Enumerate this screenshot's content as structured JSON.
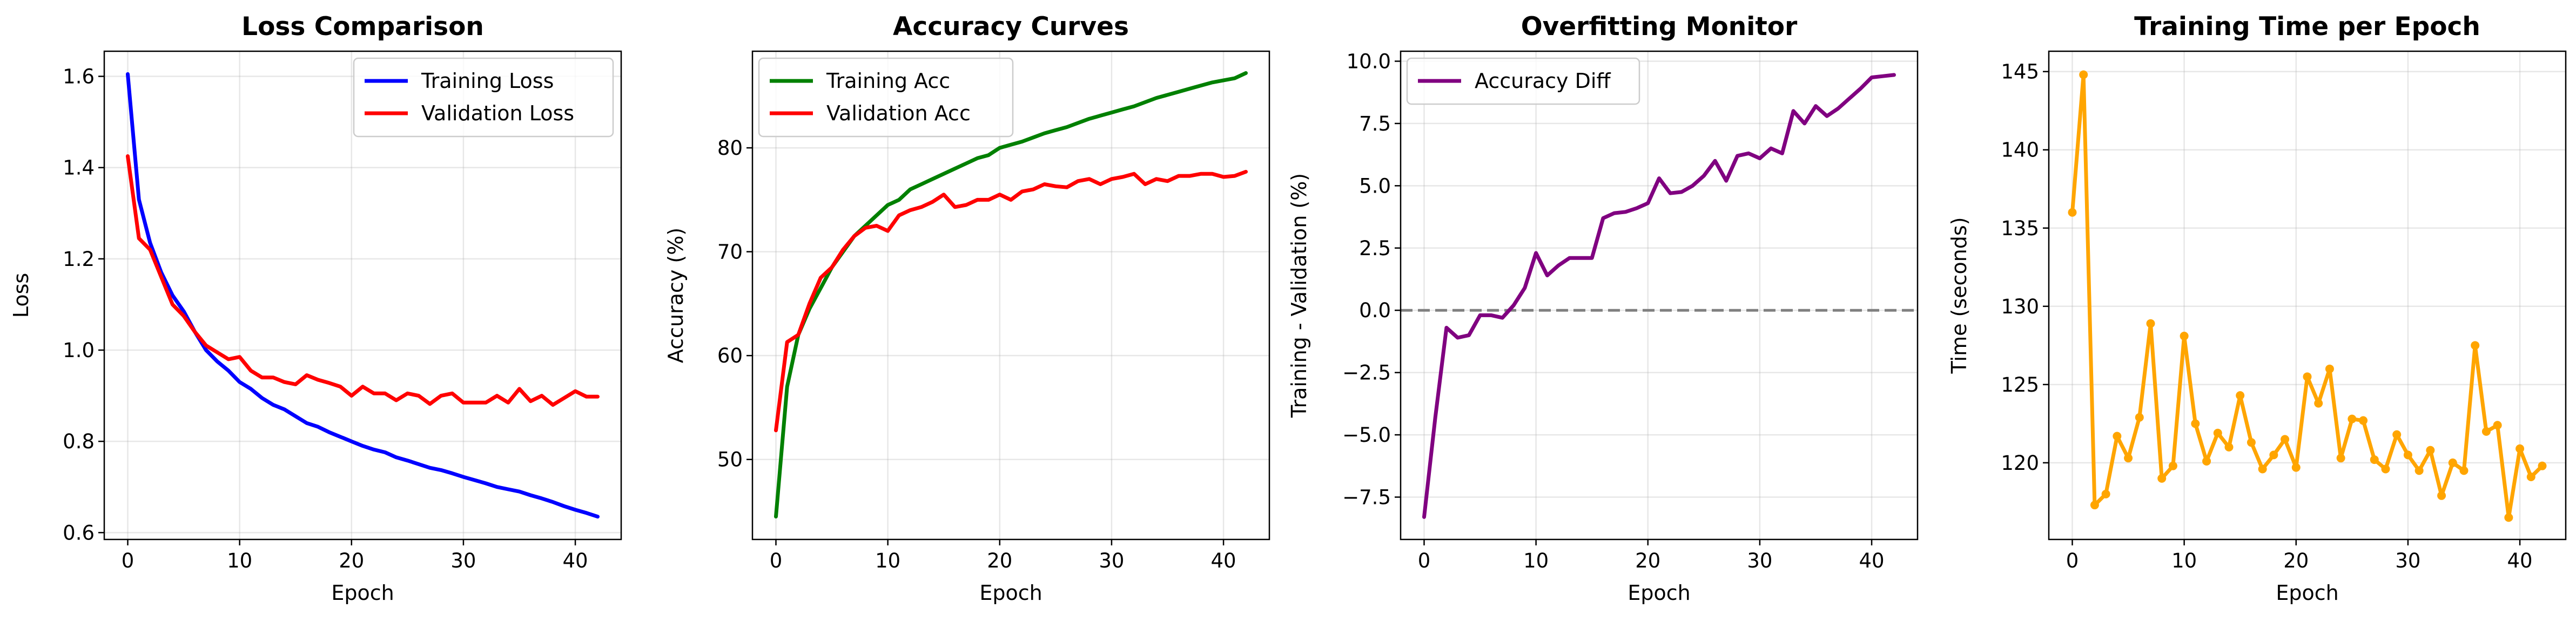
{
  "chart_data": [
    {
      "type": "line",
      "title": "Loss Comparison",
      "xlabel": "Epoch",
      "ylabel": "Loss",
      "xlim": [
        -2.1,
        44.1
      ],
      "ylim": [
        0.585,
        1.655
      ],
      "xticks": [
        0,
        10,
        20,
        30,
        40
      ],
      "yticks": [
        0.6,
        0.8,
        1.0,
        1.2,
        1.4,
        1.6
      ],
      "ytick_labels": [
        "0.6",
        "0.8",
        "1.0",
        "1.2",
        "1.4",
        "1.6"
      ],
      "grid": true,
      "legend_position": "upper right",
      "x": [
        0,
        1,
        2,
        3,
        4,
        5,
        6,
        7,
        8,
        9,
        10,
        11,
        12,
        13,
        14,
        15,
        16,
        17,
        18,
        19,
        20,
        21,
        22,
        23,
        24,
        25,
        26,
        27,
        28,
        29,
        30,
        31,
        32,
        33,
        34,
        35,
        36,
        37,
        38,
        39,
        40,
        41,
        42
      ],
      "series": [
        {
          "name": "Training Loss",
          "color": "#0000ff",
          "marker": false,
          "values": [
            1.605,
            1.33,
            1.235,
            1.17,
            1.12,
            1.085,
            1.04,
            1.0,
            0.975,
            0.955,
            0.93,
            0.915,
            0.895,
            0.88,
            0.87,
            0.855,
            0.84,
            0.832,
            0.82,
            0.81,
            0.8,
            0.79,
            0.782,
            0.776,
            0.765,
            0.758,
            0.75,
            0.742,
            0.737,
            0.73,
            0.722,
            0.715,
            0.708,
            0.7,
            0.695,
            0.69,
            0.682,
            0.675,
            0.667,
            0.658,
            0.65,
            0.643,
            0.635
          ]
        },
        {
          "name": "Validation Loss",
          "color": "#ff0000",
          "marker": false,
          "values": [
            1.425,
            1.245,
            1.22,
            1.16,
            1.1,
            1.075,
            1.04,
            1.01,
            0.995,
            0.98,
            0.985,
            0.955,
            0.94,
            0.94,
            0.93,
            0.925,
            0.945,
            0.935,
            0.928,
            0.92,
            0.9,
            0.92,
            0.905,
            0.905,
            0.89,
            0.905,
            0.9,
            0.882,
            0.9,
            0.905,
            0.885,
            0.885,
            0.885,
            0.9,
            0.885,
            0.915,
            0.888,
            0.9,
            0.88,
            0.895,
            0.91,
            0.898,
            0.898
          ]
        }
      ]
    },
    {
      "type": "line",
      "title": "Accuracy Curves",
      "xlabel": "Epoch",
      "ylabel": "Accuracy (%)",
      "xlim": [
        -2.1,
        44.1
      ],
      "ylim": [
        42.3,
        89.3
      ],
      "xticks": [
        0,
        10,
        20,
        30,
        40
      ],
      "yticks": [
        50,
        60,
        70,
        80
      ],
      "ytick_labels": [
        "50",
        "60",
        "70",
        "80"
      ],
      "grid": true,
      "legend_position": "upper left",
      "x": [
        0,
        1,
        2,
        3,
        4,
        5,
        6,
        7,
        8,
        9,
        10,
        11,
        12,
        13,
        14,
        15,
        16,
        17,
        18,
        19,
        20,
        21,
        22,
        23,
        24,
        25,
        26,
        27,
        28,
        29,
        30,
        31,
        32,
        33,
        34,
        35,
        36,
        37,
        38,
        39,
        40,
        41,
        42
      ],
      "series": [
        {
          "name": "Training Acc",
          "color": "#008000",
          "marker": false,
          "values": [
            44.5,
            57.0,
            62.0,
            64.5,
            66.5,
            68.5,
            70.0,
            71.5,
            72.5,
            73.5,
            74.5,
            75.0,
            76.0,
            76.5,
            77.0,
            77.5,
            78.0,
            78.5,
            79.0,
            79.3,
            80.0,
            80.3,
            80.6,
            81.0,
            81.4,
            81.7,
            82.0,
            82.4,
            82.8,
            83.1,
            83.4,
            83.7,
            84.0,
            84.4,
            84.8,
            85.1,
            85.4,
            85.7,
            86.0,
            86.3,
            86.5,
            86.7,
            87.2
          ]
        },
        {
          "name": "Validation Acc",
          "color": "#ff0000",
          "marker": false,
          "values": [
            52.8,
            61.3,
            62.0,
            65.0,
            67.5,
            68.5,
            70.2,
            71.5,
            72.3,
            72.5,
            72.0,
            73.5,
            74.0,
            74.3,
            74.8,
            75.5,
            74.3,
            74.5,
            75.0,
            75.0,
            75.5,
            75.0,
            75.8,
            76.0,
            76.5,
            76.3,
            76.2,
            76.8,
            77.0,
            76.5,
            77.0,
            77.2,
            77.5,
            76.5,
            77.0,
            76.8,
            77.3,
            77.3,
            77.5,
            77.5,
            77.2,
            77.3,
            77.7
          ]
        }
      ]
    },
    {
      "type": "line",
      "title": "Overfitting Monitor",
      "xlabel": "Epoch",
      "ylabel": "Training - Validation (%)",
      "xlim": [
        -2.1,
        44.1
      ],
      "ylim": [
        -9.2,
        10.4
      ],
      "xticks": [
        0,
        10,
        20,
        30,
        40
      ],
      "yticks": [
        -7.5,
        -5.0,
        -2.5,
        0.0,
        2.5,
        5.0,
        7.5,
        10.0
      ],
      "ytick_labels": [
        "−7.5",
        "−5.0",
        "−2.5",
        "0.0",
        "2.5",
        "5.0",
        "7.5",
        "10.0"
      ],
      "grid": true,
      "legend_position": "upper left",
      "reference_line": {
        "y": 0,
        "color": "#808080",
        "style": "dashed"
      },
      "x": [
        0,
        1,
        2,
        3,
        4,
        5,
        6,
        7,
        8,
        9,
        10,
        11,
        12,
        13,
        14,
        15,
        16,
        17,
        18,
        19,
        20,
        21,
        22,
        23,
        24,
        25,
        26,
        27,
        28,
        29,
        30,
        31,
        32,
        33,
        34,
        35,
        36,
        37,
        38,
        39,
        40,
        41,
        42
      ],
      "series": [
        {
          "name": "Accuracy Diff",
          "color": "#800080",
          "marker": false,
          "values": [
            -8.3,
            -4.3,
            -0.7,
            -1.1,
            -1.0,
            -0.2,
            -0.2,
            -0.3,
            0.2,
            0.9,
            2.3,
            1.4,
            1.8,
            2.1,
            2.1,
            2.1,
            3.7,
            3.9,
            3.95,
            4.1,
            4.3,
            5.3,
            4.7,
            4.75,
            5.0,
            5.4,
            6.0,
            5.2,
            6.2,
            6.3,
            6.1,
            6.5,
            6.3,
            8.0,
            7.5,
            8.2,
            7.8,
            8.1,
            8.5,
            8.9,
            9.35,
            9.4,
            9.45
          ]
        }
      ]
    },
    {
      "type": "line",
      "title": "Training Time per Epoch",
      "xlabel": "Epoch",
      "ylabel": "Time (seconds)",
      "xlim": [
        -2.1,
        44.1
      ],
      "ylim": [
        115.1,
        146.3
      ],
      "xticks": [
        0,
        10,
        20,
        30,
        40
      ],
      "yticks": [
        120,
        125,
        130,
        135,
        140,
        145
      ],
      "ytick_labels": [
        "120",
        "125",
        "130",
        "135",
        "140",
        "145"
      ],
      "grid": true,
      "legend_position": "",
      "x": [
        0,
        1,
        2,
        3,
        4,
        5,
        6,
        7,
        8,
        9,
        10,
        11,
        12,
        13,
        14,
        15,
        16,
        17,
        18,
        19,
        20,
        21,
        22,
        23,
        24,
        25,
        26,
        27,
        28,
        29,
        30,
        31,
        32,
        33,
        34,
        35,
        36,
        37,
        38,
        39,
        40,
        41,
        42
      ],
      "series": [
        {
          "color": "#ffa500",
          "marker": true,
          "values": [
            136.0,
            144.8,
            117.3,
            118.0,
            121.7,
            120.3,
            122.9,
            128.9,
            119.0,
            119.8,
            128.1,
            122.5,
            120.1,
            121.9,
            121.0,
            124.3,
            121.3,
            119.6,
            120.5,
            121.5,
            119.7,
            125.5,
            123.8,
            126.0,
            120.3,
            122.8,
            122.7,
            120.2,
            119.6,
            121.8,
            120.5,
            119.5,
            120.8,
            117.9,
            120.0,
            119.5,
            127.5,
            122.0,
            122.4,
            116.5,
            120.9,
            119.1,
            119.8
          ]
        }
      ]
    }
  ]
}
